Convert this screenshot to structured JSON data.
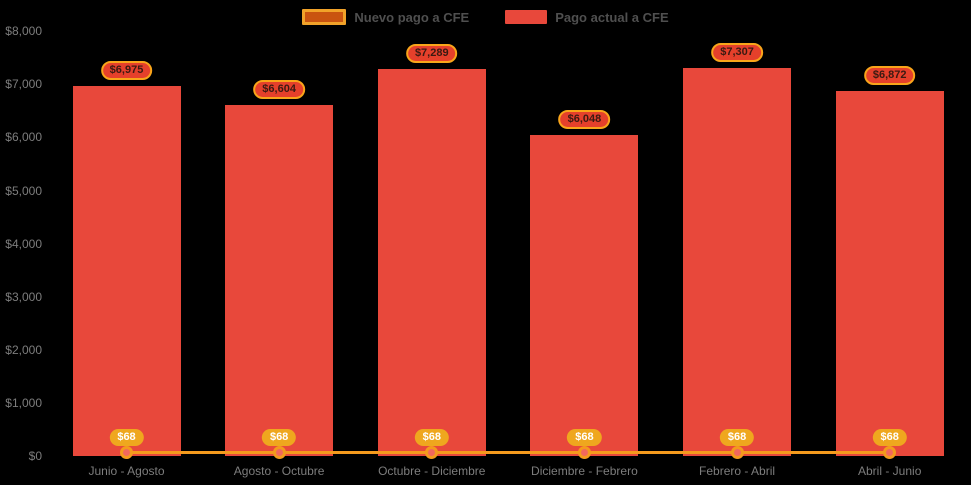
{
  "legend": {
    "items": [
      {
        "label": "Nuevo pago a CFE",
        "series_type": "line"
      },
      {
        "label": "Pago actual a CFE",
        "series_type": "bar"
      }
    ],
    "position": "top"
  },
  "chart_data": {
    "type": "bar",
    "subtype": "bar-with-line-overlay",
    "categories": [
      "Junio - Agosto",
      "Agosto - Octubre",
      "Octubre - Diciembre",
      "Diciembre - Febrero",
      "Febrero - Abril",
      "Abril - Junio"
    ],
    "series": [
      {
        "name": "Nuevo pago a CFE",
        "type": "line",
        "values": [
          68,
          68,
          68,
          68,
          68,
          68
        ],
        "data_labels": [
          "$68",
          "$68",
          "$68",
          "$68",
          "$68",
          "$68"
        ]
      },
      {
        "name": "Pago actual a CFE",
        "type": "bar",
        "values": [
          6975,
          6604,
          7289,
          6048,
          7307,
          6872
        ],
        "data_labels": [
          "$6,975",
          "$6,604",
          "$7,289",
          "$6,048",
          "$7,307",
          "$6,872"
        ]
      }
    ],
    "y_ticks": [
      {
        "value": 0,
        "label": "$0"
      },
      {
        "value": 1000,
        "label": "$1,000"
      },
      {
        "value": 2000,
        "label": "$2,000"
      },
      {
        "value": 3000,
        "label": "$3,000"
      },
      {
        "value": 4000,
        "label": "$4,000"
      },
      {
        "value": 5000,
        "label": "$5,000"
      },
      {
        "value": 6000,
        "label": "$6,000"
      },
      {
        "value": 7000,
        "label": "$7,000"
      },
      {
        "value": 8000,
        "label": "$8,000"
      }
    ],
    "ylim": [
      0,
      8000
    ],
    "xlabel": "",
    "ylabel": "",
    "title": "",
    "grid": false,
    "legend_position": "top"
  },
  "colors": {
    "background": "#000000",
    "bar": "#E8483B",
    "line": "#F49A1D",
    "marker_fill": "#F2685C",
    "value_badge_fill": "#E5402B",
    "value_badge_border": "#F9A51A",
    "value_badge_text": "#3A1A12",
    "small_badge_fill": "#EFA71E",
    "small_badge_text": "#FFFFFF",
    "axis_text": "#7D7D7D",
    "legend_text": "#4F4F4F",
    "legend_line_swatch_fill": "#C95310",
    "legend_line_swatch_border": "#F1A229"
  }
}
